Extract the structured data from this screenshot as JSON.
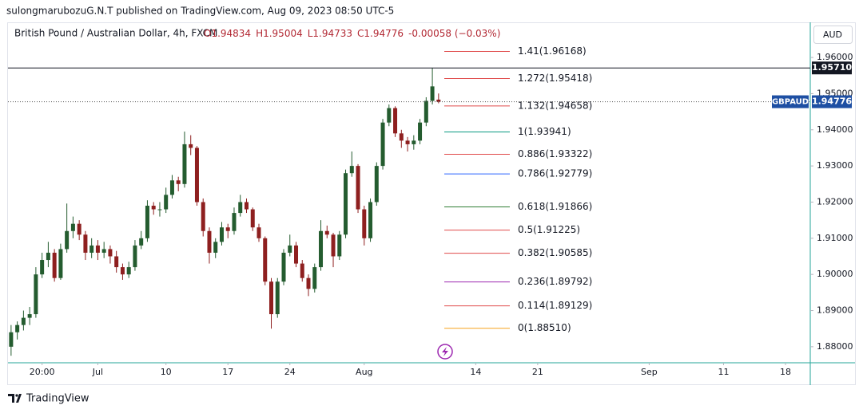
{
  "header": {
    "published": "sulongmarubozuG.N.T published on TradingView.com, Aug 09, 2023 08:50 UTC-5",
    "currency": "AUD",
    "footer": "TradingView"
  },
  "chart_data": {
    "type": "candlestick",
    "legend": {
      "symbol": "British Pound / Australian Dollar, 4h, FXCM",
      "ohlc": [
        "O1.94834",
        "H1.95004",
        "L1.94733",
        "C1.94776"
      ],
      "change": "-0.00058 (−0.03%)"
    },
    "up_color": "#245c2f",
    "down_color": "#8e1f1f",
    "open": [
      1.88,
      1.884,
      1.886,
      1.888,
      1.889,
      1.9,
      1.904,
      1.906,
      1.899,
      1.907,
      1.912,
      1.914,
      1.911,
      1.906,
      1.908,
      1.906,
      1.907,
      1.905,
      1.902,
      1.9,
      1.902,
      1.908,
      1.91,
      1.919,
      1.918,
      1.918,
      1.922,
      1.926,
      1.925,
      1.936,
      1.935,
      1.92,
      1.912,
      1.906,
      1.909,
      1.913,
      1.912,
      1.917,
      1.92,
      1.918,
      1.913,
      1.91,
      1.898,
      1.889,
      1.898,
      1.906,
      1.908,
      1.903,
      1.899,
      1.896,
      1.902,
      1.912,
      1.911,
      1.905,
      1.911,
      1.928,
      1.93,
      1.918,
      1.91,
      1.92,
      1.93,
      1.942,
      1.946,
      1.939,
      1.937,
      1.936,
      1.937,
      1.942,
      1.948,
      1.94834
    ],
    "high": [
      1.886,
      1.887,
      1.89,
      1.891,
      1.902,
      1.906,
      1.909,
      1.907,
      1.9085,
      1.9196,
      1.916,
      1.915,
      1.912,
      1.91,
      1.9095,
      1.909,
      1.908,
      1.9065,
      1.903,
      1.9035,
      1.9095,
      1.912,
      1.9205,
      1.92,
      1.92,
      1.924,
      1.9275,
      1.927,
      1.9395,
      1.9385,
      1.9355,
      1.921,
      1.913,
      1.91,
      1.9145,
      1.914,
      1.9185,
      1.922,
      1.921,
      1.9185,
      1.914,
      1.9105,
      1.899,
      1.899,
      1.907,
      1.911,
      1.909,
      1.904,
      1.9,
      1.903,
      1.915,
      1.9135,
      1.9115,
      1.912,
      1.929,
      1.934,
      1.9305,
      1.919,
      1.921,
      1.931,
      1.943,
      1.947,
      1.9465,
      1.94,
      1.938,
      1.9385,
      1.943,
      1.949,
      1.9571,
      1.95004
    ],
    "low": [
      1.8775,
      1.882,
      1.8845,
      1.886,
      1.888,
      1.899,
      1.902,
      1.898,
      1.8985,
      1.906,
      1.91,
      1.9095,
      1.904,
      1.9045,
      1.904,
      1.9045,
      1.903,
      1.9005,
      1.8985,
      1.899,
      1.901,
      1.907,
      1.909,
      1.9165,
      1.916,
      1.917,
      1.921,
      1.923,
      1.924,
      1.933,
      1.919,
      1.9105,
      1.903,
      1.9045,
      1.908,
      1.91,
      1.911,
      1.916,
      1.917,
      1.912,
      1.909,
      1.897,
      1.885,
      1.888,
      1.897,
      1.905,
      1.902,
      1.898,
      1.894,
      1.895,
      1.901,
      1.91,
      1.902,
      1.904,
      1.91,
      1.927,
      1.917,
      1.908,
      1.909,
      1.919,
      1.929,
      1.941,
      1.938,
      1.935,
      1.934,
      1.9345,
      1.936,
      1.941,
      1.947,
      1.94733
    ],
    "close": [
      1.884,
      1.886,
      1.888,
      1.889,
      1.9,
      1.904,
      1.906,
      1.899,
      1.907,
      1.912,
      1.914,
      1.911,
      1.906,
      1.908,
      1.906,
      1.907,
      1.905,
      1.902,
      1.9,
      1.902,
      1.908,
      1.91,
      1.919,
      1.918,
      1.918,
      1.922,
      1.926,
      1.925,
      1.936,
      1.935,
      1.92,
      1.912,
      1.906,
      1.909,
      1.913,
      1.912,
      1.917,
      1.92,
      1.918,
      1.913,
      1.91,
      1.898,
      1.889,
      1.898,
      1.906,
      1.908,
      1.903,
      1.899,
      1.896,
      1.902,
      1.912,
      1.911,
      1.905,
      1.911,
      1.928,
      1.93,
      1.918,
      1.91,
      1.92,
      1.93,
      1.942,
      1.946,
      1.939,
      1.937,
      1.936,
      1.937,
      1.942,
      1.948,
      1.952,
      1.94776
    ],
    "xlim": [
      -0.5,
      129
    ],
    "xticks": [
      {
        "value": 5,
        "label": "20:00"
      },
      {
        "value": 14,
        "label": "Jul"
      },
      {
        "value": 25,
        "label": "10"
      },
      {
        "value": 35,
        "label": "17"
      },
      {
        "value": 45,
        "label": "24"
      },
      {
        "value": 57,
        "label": "Aug"
      },
      {
        "value": 75,
        "label": "14"
      },
      {
        "value": 85,
        "label": "21"
      },
      {
        "value": 103,
        "label": "Sep"
      },
      {
        "value": 115,
        "label": "11"
      },
      {
        "value": 125,
        "label": "18"
      }
    ],
    "ylim": [
      1.87556,
      1.96972
    ],
    "yticks": [
      {
        "value": 1.88,
        "label": "1.88000"
      },
      {
        "value": 1.89,
        "label": "1.89000"
      },
      {
        "value": 1.9,
        "label": "1.90000"
      },
      {
        "value": 1.91,
        "label": "1.91000"
      },
      {
        "value": 1.92,
        "label": "1.92000"
      },
      {
        "value": 1.93,
        "label": "1.93000"
      },
      {
        "value": 1.94,
        "label": "1.94000"
      },
      {
        "value": 1.95,
        "label": "1.95000"
      },
      {
        "value": 1.96,
        "label": "1.96000"
      }
    ],
    "hline": {
      "value": 1.9571,
      "label": "1.95710"
    },
    "last_price": {
      "value": 1.94776,
      "label": "1.94776",
      "symbol": "GBPAUD"
    },
    "fib_levels": [
      {
        "label": "1.41(1.96168)",
        "price": 1.96168,
        "color": "#e04a4a"
      },
      {
        "label": "1.272(1.95418)",
        "price": 1.95418,
        "color": "#e04a4a"
      },
      {
        "label": "1.132(1.94658)",
        "price": 1.94658,
        "color": "#e04a4a"
      },
      {
        "label": "1(1.93941)",
        "price": 1.93941,
        "color": "#089981"
      },
      {
        "label": "0.886(1.93322)",
        "price": 1.93322,
        "color": "#e04a4a"
      },
      {
        "label": "0.786(1.92779)",
        "price": 1.92779,
        "color": "#2962ff"
      },
      {
        "label": "0.618(1.91866)",
        "price": 1.91866,
        "color": "#2e7d32"
      },
      {
        "label": "0.5(1.91225)",
        "price": 1.91225,
        "color": "#e04a4a"
      },
      {
        "label": "0.382(1.90585)",
        "price": 1.90585,
        "color": "#e04a4a"
      },
      {
        "label": "0.236(1.89792)",
        "price": 1.89792,
        "color": "#9c27b0"
      },
      {
        "label": "0.114(1.89129)",
        "price": 1.89129,
        "color": "#e04a4a"
      },
      {
        "label": "0(1.88510)",
        "price": 1.8851,
        "color": "#f7a21b"
      }
    ]
  }
}
